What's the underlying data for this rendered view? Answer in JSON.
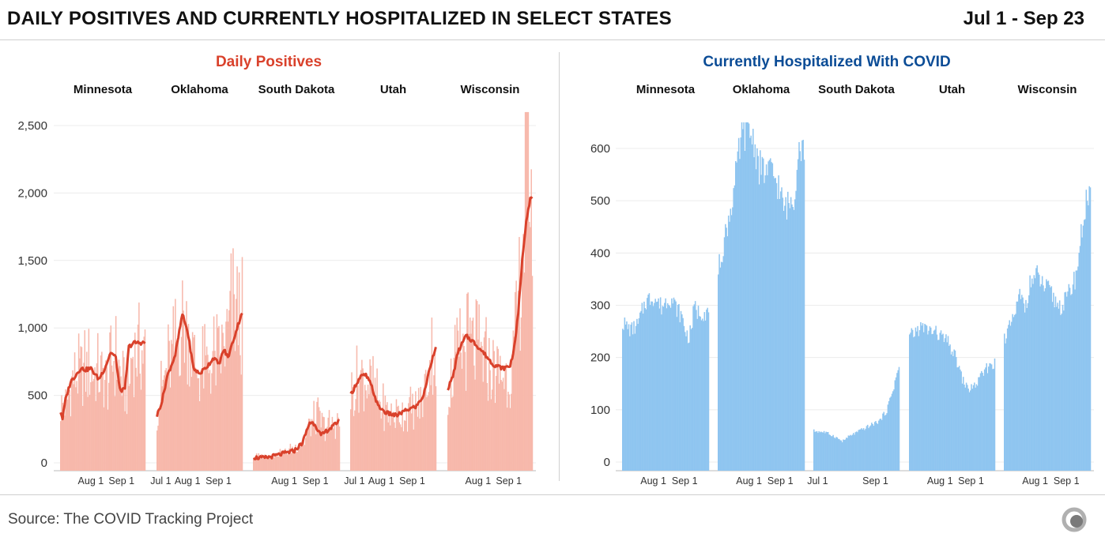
{
  "header": {
    "title": "DAILY POSITIVES AND CURRENTLY HOSPITALIZED IN SELECT STATES",
    "range": "Jul 1 - Sep 23"
  },
  "footer": {
    "source": "Source: The COVID Tracking Project"
  },
  "colors": {
    "positives_bar": "#f7b8ab",
    "positives_line": "#d9412b",
    "positives_title": "#d9412b",
    "hosp_bar": "#8fc5f0",
    "hosp_title": "#0b4c96"
  },
  "logo_icon": "covid-tracking-project-logo-icon",
  "chart_data": [
    {
      "type": "bar",
      "title": "Daily Positives",
      "ylim": [
        0,
        2600
      ],
      "yticks": [
        0,
        500,
        1000,
        1500,
        2000,
        2500
      ],
      "ytick_labels": [
        "0",
        "500",
        "1,000",
        "1,500",
        "2,000",
        "2,500"
      ],
      "grid": true,
      "facets": [
        {
          "state": "Minnesota",
          "x_ticks": [
            "Aug 1",
            "Sep 1"
          ],
          "bars_keypoints": [
            [
              0,
              450
            ],
            [
              6,
              470
            ],
            [
              12,
              680
            ],
            [
              20,
              720
            ],
            [
              30,
              740
            ],
            [
              40,
              700
            ],
            [
              47,
              640
            ],
            [
              52,
              830
            ],
            [
              57,
              790
            ],
            [
              63,
              580
            ],
            [
              68,
              600
            ],
            [
              71,
              870
            ],
            [
              73,
              880
            ]
          ],
          "avg_keypoints": [
            [
              0,
              380
            ],
            [
              2,
              330
            ],
            [
              5,
              470
            ],
            [
              10,
              600
            ],
            [
              20,
              700
            ],
            [
              25,
              690
            ],
            [
              30,
              700
            ],
            [
              38,
              620
            ],
            [
              44,
              700
            ],
            [
              50,
              820
            ],
            [
              55,
              780
            ],
            [
              59,
              540
            ],
            [
              64,
              540
            ],
            [
              68,
              860
            ],
            [
              73,
              890
            ]
          ]
        },
        {
          "state": "Oklahoma",
          "x_ticks": [
            "Jul 1",
            "Aug 1",
            "Sep 1"
          ],
          "bars_keypoints": [
            [
              0,
              420
            ],
            [
              8,
              700
            ],
            [
              18,
              900
            ],
            [
              26,
              1150
            ],
            [
              33,
              950
            ],
            [
              40,
              720
            ],
            [
              50,
              780
            ],
            [
              60,
              820
            ],
            [
              68,
              960
            ],
            [
              73,
              1150
            ],
            [
              78,
              1220
            ],
            [
              84,
              1130
            ]
          ],
          "avg_keypoints": [
            [
              0,
              350
            ],
            [
              5,
              460
            ],
            [
              10,
              640
            ],
            [
              18,
              800
            ],
            [
              25,
              1100
            ],
            [
              30,
              980
            ],
            [
              36,
              700
            ],
            [
              42,
              660
            ],
            [
              50,
              720
            ],
            [
              56,
              780
            ],
            [
              61,
              730
            ],
            [
              66,
              840
            ],
            [
              70,
              780
            ],
            [
              84,
              1120
            ]
          ]
        },
        {
          "state": "South Dakota",
          "x_ticks": [
            "Aug 1",
            "Sep 1"
          ],
          "bars_keypoints": [
            [
              0,
              50
            ],
            [
              20,
              60
            ],
            [
              35,
              100
            ],
            [
              50,
              170
            ],
            [
              55,
              300
            ],
            [
              62,
              370
            ],
            [
              70,
              280
            ],
            [
              78,
              300
            ],
            [
              84,
              340
            ]
          ],
          "avg_keypoints": [
            [
              0,
              40
            ],
            [
              10,
              35
            ],
            [
              20,
              50
            ],
            [
              30,
              70
            ],
            [
              40,
              90
            ],
            [
              48,
              150
            ],
            [
              55,
              300
            ],
            [
              60,
              290
            ],
            [
              66,
              200
            ],
            [
              72,
              240
            ],
            [
              78,
              270
            ],
            [
              84,
              320
            ]
          ]
        },
        {
          "state": "Utah",
          "x_ticks": [
            "Jul 1",
            "Aug 1",
            "Sep 1"
          ],
          "bars_keypoints": [
            [
              0,
              560
            ],
            [
              10,
              700
            ],
            [
              20,
              620
            ],
            [
              30,
              450
            ],
            [
              40,
              380
            ],
            [
              50,
              400
            ],
            [
              60,
              420
            ],
            [
              70,
              480
            ],
            [
              76,
              700
            ],
            [
              80,
              900
            ],
            [
              84,
              880
            ]
          ],
          "avg_keypoints": [
            [
              0,
              500
            ],
            [
              5,
              580
            ],
            [
              10,
              640
            ],
            [
              15,
              650
            ],
            [
              20,
              580
            ],
            [
              27,
              420
            ],
            [
              35,
              370
            ],
            [
              45,
              350
            ],
            [
              55,
              390
            ],
            [
              65,
              420
            ],
            [
              72,
              500
            ],
            [
              78,
              700
            ],
            [
              84,
              870
            ]
          ]
        },
        {
          "state": "Wisconsin",
          "x_ticks": [
            "Aug 1",
            "Sep 1"
          ],
          "bars_keypoints": [
            [
              0,
              600
            ],
            [
              8,
              780
            ],
            [
              15,
              900
            ],
            [
              22,
              950
            ],
            [
              30,
              880
            ],
            [
              40,
              780
            ],
            [
              50,
              720
            ],
            [
              58,
              700
            ],
            [
              64,
              750
            ],
            [
              68,
              1000
            ],
            [
              72,
              1500
            ],
            [
              75,
              1800
            ],
            [
              78,
              2300
            ],
            [
              80,
              2580
            ],
            [
              82,
              2400
            ],
            [
              84,
              1900
            ]
          ],
          "avg_keypoints": [
            [
              0,
              550
            ],
            [
              5,
              640
            ],
            [
              10,
              820
            ],
            [
              18,
              940
            ],
            [
              25,
              900
            ],
            [
              35,
              820
            ],
            [
              45,
              730
            ],
            [
              55,
              700
            ],
            [
              62,
              720
            ],
            [
              66,
              850
            ],
            [
              70,
              1100
            ],
            [
              74,
              1500
            ],
            [
              78,
              1800
            ],
            [
              82,
              1960
            ]
          ]
        }
      ]
    },
    {
      "type": "bar",
      "title": "Currently Hospitalized With COVID",
      "ylim": [
        0,
        650
      ],
      "yticks": [
        0,
        100,
        200,
        300,
        400,
        500,
        600
      ],
      "ytick_labels": [
        "0",
        "100",
        "200",
        "300",
        "400",
        "500",
        "600"
      ],
      "grid": true,
      "facets": [
        {
          "state": "Minnesota",
          "x_ticks": [
            "Aug 1",
            "Sep 1"
          ],
          "bars_keypoints": [
            [
              0,
              270
            ],
            [
              8,
              255
            ],
            [
              15,
              265
            ],
            [
              22,
              310
            ],
            [
              30,
              320
            ],
            [
              38,
              300
            ],
            [
              46,
              320
            ],
            [
              52,
              300
            ],
            [
              58,
              280
            ],
            [
              62,
              250
            ],
            [
              65,
              240
            ],
            [
              68,
              270
            ],
            [
              70,
              300
            ],
            [
              73,
              290
            ]
          ]
        },
        {
          "state": "Oklahoma",
          "x_ticks": [
            "Aug 1",
            "Sep 1"
          ],
          "bars_keypoints": [
            [
              0,
              370
            ],
            [
              8,
              450
            ],
            [
              15,
              520
            ],
            [
              22,
              620
            ],
            [
              28,
              650
            ],
            [
              35,
              620
            ],
            [
              40,
              570
            ],
            [
              46,
              560
            ],
            [
              52,
              560
            ],
            [
              58,
              540
            ],
            [
              64,
              490
            ],
            [
              70,
              500
            ],
            [
              75,
              520
            ],
            [
              78,
              620
            ],
            [
              80,
              610
            ]
          ]
        },
        {
          "state": "South Dakota",
          "x_ticks": [
            "Jul 1",
            "Sep 1"
          ],
          "bars_keypoints": [
            [
              0,
              60
            ],
            [
              10,
              58
            ],
            [
              20,
              50
            ],
            [
              28,
              40
            ],
            [
              35,
              50
            ],
            [
              45,
              60
            ],
            [
              55,
              70
            ],
            [
              65,
              80
            ],
            [
              72,
              100
            ],
            [
              78,
              140
            ],
            [
              84,
              185
            ]
          ]
        },
        {
          "state": "Utah",
          "x_ticks": [
            "Aug 1",
            "Sep 1"
          ],
          "bars_keypoints": [
            [
              0,
              240
            ],
            [
              10,
              260
            ],
            [
              20,
              255
            ],
            [
              30,
              245
            ],
            [
              38,
              230
            ],
            [
              46,
              200
            ],
            [
              52,
              160
            ],
            [
              58,
              140
            ],
            [
              66,
              150
            ],
            [
              72,
              170
            ],
            [
              78,
              185
            ],
            [
              80,
              190
            ]
          ]
        },
        {
          "state": "Wisconsin",
          "x_ticks": [
            "Aug 1",
            "Sep 1"
          ],
          "bars_keypoints": [
            [
              0,
              240
            ],
            [
              8,
              270
            ],
            [
              15,
              320
            ],
            [
              20,
              300
            ],
            [
              26,
              350
            ],
            [
              32,
              360
            ],
            [
              38,
              340
            ],
            [
              44,
              330
            ],
            [
              50,
              310
            ],
            [
              56,
              300
            ],
            [
              62,
              320
            ],
            [
              66,
              340
            ],
            [
              70,
              360
            ],
            [
              74,
              420
            ],
            [
              78,
              480
            ],
            [
              80,
              505
            ]
          ]
        }
      ]
    }
  ]
}
